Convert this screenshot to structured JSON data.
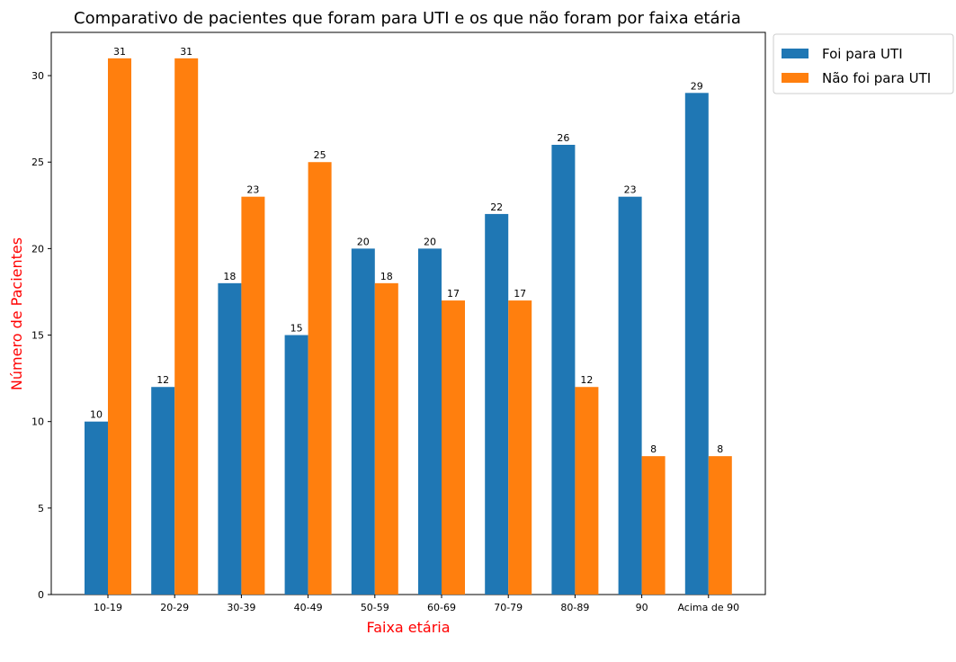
{
  "chart_data": {
    "type": "bar",
    "title": "Comparativo de pacientes que foram para UTI e os que não foram por faixa etária",
    "xlabel": "Faixa etária",
    "ylabel": "Número de Pacientes",
    "categories": [
      "10-19",
      "20-29",
      "30-39",
      "40-49",
      "50-59",
      "60-69",
      "70-79",
      "80-89",
      "90",
      "Acima de 90"
    ],
    "series": [
      {
        "name": "Foi para UTI",
        "color": "#1f77b4",
        "values": [
          10,
          12,
          18,
          15,
          20,
          20,
          22,
          26,
          23,
          29
        ]
      },
      {
        "name": "Não foi para UTI",
        "color": "#ff7f0e",
        "values": [
          31,
          31,
          23,
          25,
          18,
          17,
          17,
          12,
          8,
          8
        ]
      }
    ],
    "ylim": [
      0,
      32.5
    ],
    "yticks": [
      0,
      5,
      10,
      15,
      20,
      25,
      30
    ],
    "grid": false,
    "legend_position": "outside-top-right",
    "axis_label_color": "#ff0000"
  }
}
